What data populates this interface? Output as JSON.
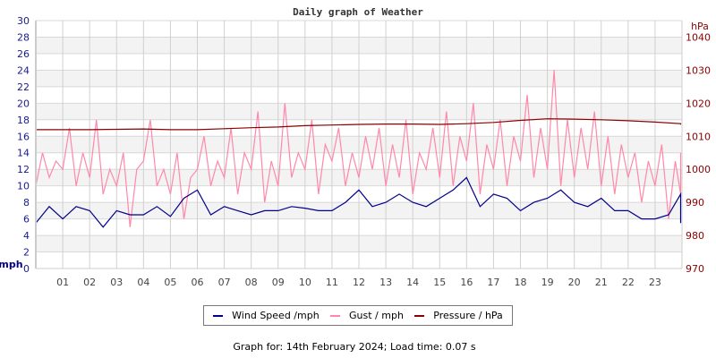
{
  "chart_data": {
    "type": "line",
    "title": "Daily graph of Weather",
    "ylabel_left": "mph",
    "ylabel_right": "hPa",
    "ylim_left": [
      0,
      30
    ],
    "ylim_right": [
      970,
      1045
    ],
    "xlim": [
      0,
      24
    ],
    "grid": true,
    "legend_placement": "bottom",
    "left_ticks": [
      "0",
      "2",
      "4",
      "6",
      "8",
      "10",
      "12",
      "14",
      "16",
      "18",
      "20",
      "22",
      "24",
      "26",
      "28",
      "30"
    ],
    "right_ticks": [
      "970",
      "980",
      "990",
      "1000",
      "1010",
      "1020",
      "1030",
      "1040"
    ],
    "x_ticks": [
      "01",
      "02",
      "03",
      "04",
      "05",
      "06",
      "07",
      "08",
      "09",
      "10",
      "11",
      "12",
      "13",
      "14",
      "15",
      "16",
      "17",
      "18",
      "19",
      "20",
      "21",
      "22",
      "23"
    ],
    "series": [
      {
        "name": "Wind Speed /mph",
        "color": "#00008b",
        "axis": "left",
        "interval_hours": 0.5,
        "values": [
          5.5,
          7.5,
          6,
          7.5,
          7,
          5,
          7,
          6.5,
          6.5,
          7.5,
          6.3,
          8.5,
          9.5,
          6.5,
          7.5,
          7,
          6.5,
          7,
          7,
          7.5,
          7.3,
          7,
          7,
          8,
          9.5,
          7.5,
          8,
          9,
          8,
          7.5,
          8.5,
          9.5,
          11,
          7.5,
          9,
          8.5,
          7,
          8,
          8.5,
          9.5,
          8,
          7.5,
          8.5,
          7,
          7,
          6,
          6,
          6.5,
          9,
          5.5,
          6,
          5.8,
          7,
          6.5
        ]
      },
      {
        "name": "Gust / mph",
        "color": "#ff88aa",
        "axis": "left",
        "interval_hours": 0.25,
        "values": [
          10,
          14,
          11,
          13,
          12,
          17,
          10,
          14,
          11,
          18,
          9,
          12,
          10,
          14,
          5,
          12,
          13,
          18,
          10,
          12,
          9,
          14,
          6,
          11,
          12,
          16,
          10,
          13,
          11,
          17,
          9,
          14,
          12,
          19,
          8,
          13,
          10,
          20,
          11,
          14,
          12,
          18,
          9,
          15,
          13,
          17,
          10,
          14,
          11,
          16,
          12,
          17,
          10,
          15,
          11,
          18,
          9,
          14,
          12,
          17,
          11,
          19,
          10,
          16,
          13,
          20,
          9,
          15,
          12,
          18,
          10,
          16,
          13,
          21,
          11,
          17,
          12,
          24,
          10,
          18,
          11,
          17,
          12,
          19,
          10,
          16,
          9,
          15,
          11,
          14,
          8,
          13,
          10,
          15,
          6,
          13,
          9,
          14
        ]
      },
      {
        "name": "Pressure / hPa",
        "color": "#8b0000",
        "axis": "right",
        "interval_hours": 1,
        "values": [
          1012,
          1012,
          1012,
          1012.1,
          1012.2,
          1012,
          1012,
          1012.3,
          1012.6,
          1012.8,
          1013.2,
          1013.4,
          1013.6,
          1013.7,
          1013.7,
          1013.6,
          1013.8,
          1014.2,
          1014.8,
          1015.3,
          1015.2,
          1015,
          1014.7,
          1014.3,
          1013.8,
          1013.5
        ]
      }
    ]
  },
  "footer": "Graph for: 14th February 2024; Load time: 0.07 s"
}
